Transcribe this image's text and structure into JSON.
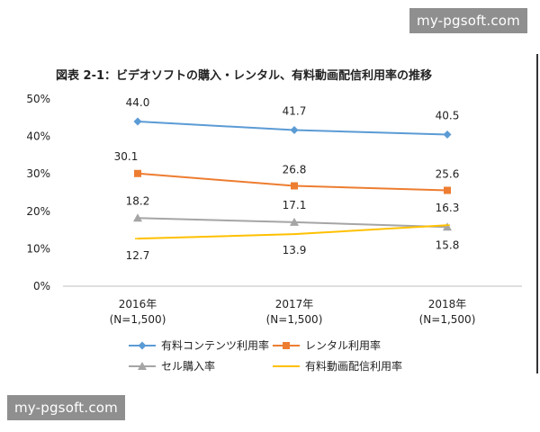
{
  "watermark": {
    "text": "my-pgsoft.com"
  },
  "chart_data": {
    "type": "line",
    "title": "図表 2-1：ビデオソフトの購入・レンタル、有料動画配信利用率の推移",
    "categories": [
      "2016年",
      "2017年",
      "2018年"
    ],
    "category_sublabels": [
      "(N=1,500)",
      "(N=1,500)",
      "(N=1,500)"
    ],
    "y_ticks": [
      "0%",
      "10%",
      "20%",
      "30%",
      "40%",
      "50%"
    ],
    "ylim": [
      0,
      50
    ],
    "grid": false,
    "legend_position": "bottom",
    "series": [
      {
        "name": "有料コンテンツ利用率",
        "values": [
          44.0,
          41.7,
          40.5
        ],
        "labels": [
          "44.0",
          "41.7",
          "40.5"
        ],
        "color": "#5b9bd5",
        "marker": "diamond"
      },
      {
        "name": "レンタル利用率",
        "values": [
          30.1,
          26.8,
          25.6
        ],
        "labels": [
          "30.1",
          "26.8",
          "25.6"
        ],
        "color": "#ed7d31",
        "marker": "square"
      },
      {
        "name": "セル購入率",
        "values": [
          18.2,
          17.1,
          15.8
        ],
        "labels": [
          "18.2",
          "17.1",
          "15.8"
        ],
        "color": "#a5a5a5",
        "marker": "triangle"
      },
      {
        "name": "有料動画配信利用率",
        "values": [
          12.7,
          13.9,
          16.3
        ],
        "labels": [
          "12.7",
          "13.9",
          "16.3"
        ],
        "color": "#ffc000",
        "marker": "none"
      }
    ]
  }
}
